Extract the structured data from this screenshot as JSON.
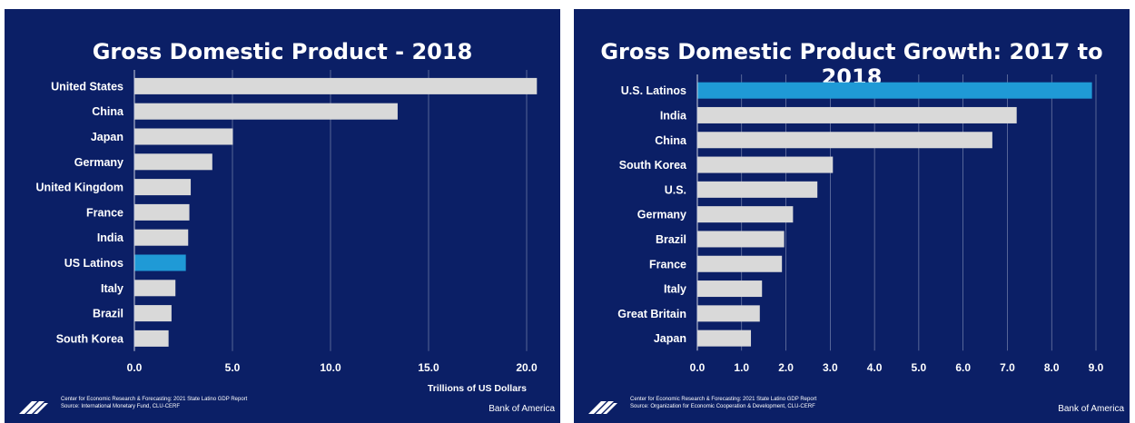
{
  "colors": {
    "background": "#0b1f66",
    "bar": "#d9d9d9",
    "highlight": "#1f9ad6",
    "grid": "#c0c6dc"
  },
  "chart_data": [
    {
      "type": "bar",
      "orientation": "horizontal",
      "title": "Gross Domestic Product - 2018",
      "xlabel": "Trillions of US Dollars",
      "categories": [
        "United States",
        "China",
        "Japan",
        "Germany",
        "United Kingdom",
        "France",
        "India",
        "US Latinos",
        "Italy",
        "Brazil",
        "South Korea"
      ],
      "values": [
        20.5,
        13.4,
        5.0,
        3.95,
        2.85,
        2.78,
        2.72,
        2.6,
        2.07,
        1.87,
        1.72
      ],
      "highlight": "US Latinos",
      "xlim": [
        0,
        20
      ],
      "xticks": [
        "0.0",
        "5.0",
        "10.0",
        "15.0",
        "20.0"
      ],
      "grid": true,
      "footer": {
        "line1": "Center for Economic Research & Forecasting: 2021 State Latino GDP Report",
        "line2": "Source: International Monetary Fund, CLU-CERF",
        "brand": "Bank of America"
      }
    },
    {
      "type": "bar",
      "orientation": "horizontal",
      "title": "Gross Domestic Product Growth: 2017 to 2018",
      "xlabel": "",
      "categories": [
        "U.S. Latinos",
        "India",
        "China",
        "South Korea",
        "U.S.",
        "Germany",
        "Brazil",
        "France",
        "Italy",
        "Great Britain",
        "Japan"
      ],
      "values": [
        8.9,
        7.2,
        6.65,
        3.05,
        2.7,
        2.15,
        1.95,
        1.9,
        1.45,
        1.4,
        1.2
      ],
      "highlight": "U.S. Latinos",
      "xlim": [
        0,
        9
      ],
      "xticks": [
        "0.0",
        "1.0",
        "2.0",
        "3.0",
        "4.0",
        "5.0",
        "6.0",
        "7.0",
        "8.0",
        "9.0"
      ],
      "grid": true,
      "footer": {
        "line1": "Center for Economic Research & Forecasting: 2021 State Latino GDP Report",
        "line2": "Source: Organization for Economic Cooperation & Development, CLU-CERF",
        "brand": "Bank of America"
      }
    }
  ]
}
